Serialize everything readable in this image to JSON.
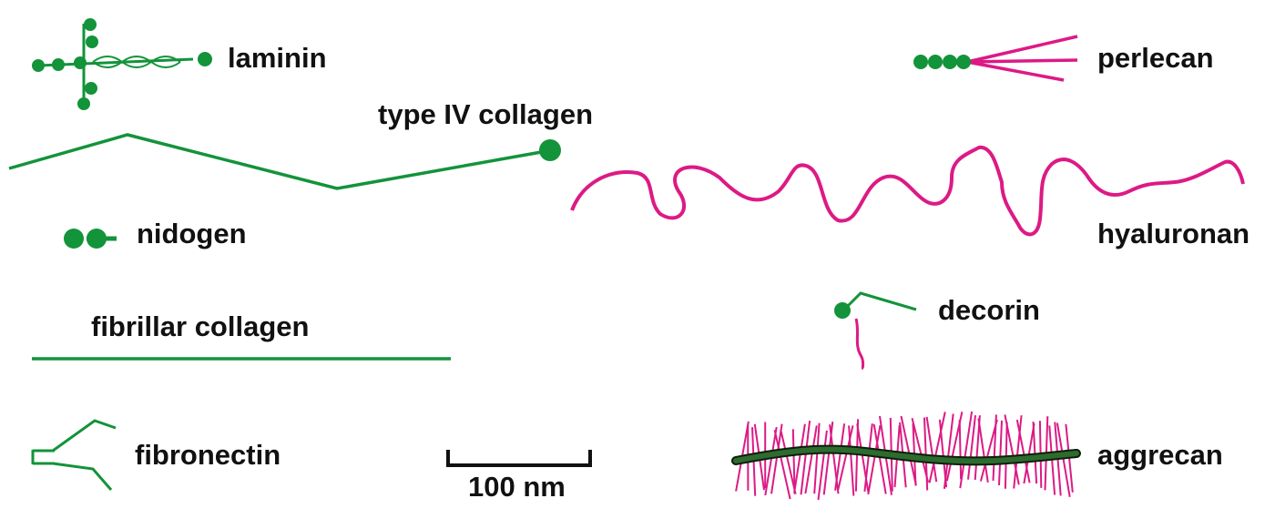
{
  "colors": {
    "protein": "#13933a",
    "polysaccharide": "#dc1a85",
    "aggrecan_core": "#2d6b2e",
    "text": "#111111"
  },
  "labels": {
    "laminin": "laminin",
    "perlecan": "perlecan",
    "type_iv_collagen": "type IV collagen",
    "nidogen": "nidogen",
    "hyaluronan": "hyaluronan",
    "decorin": "decorin",
    "fibrillar_collagen": "fibrillar collagen",
    "fibronectin": "fibronectin",
    "aggrecan": "aggrecan"
  },
  "scale_bar": {
    "label": "100 nm"
  }
}
